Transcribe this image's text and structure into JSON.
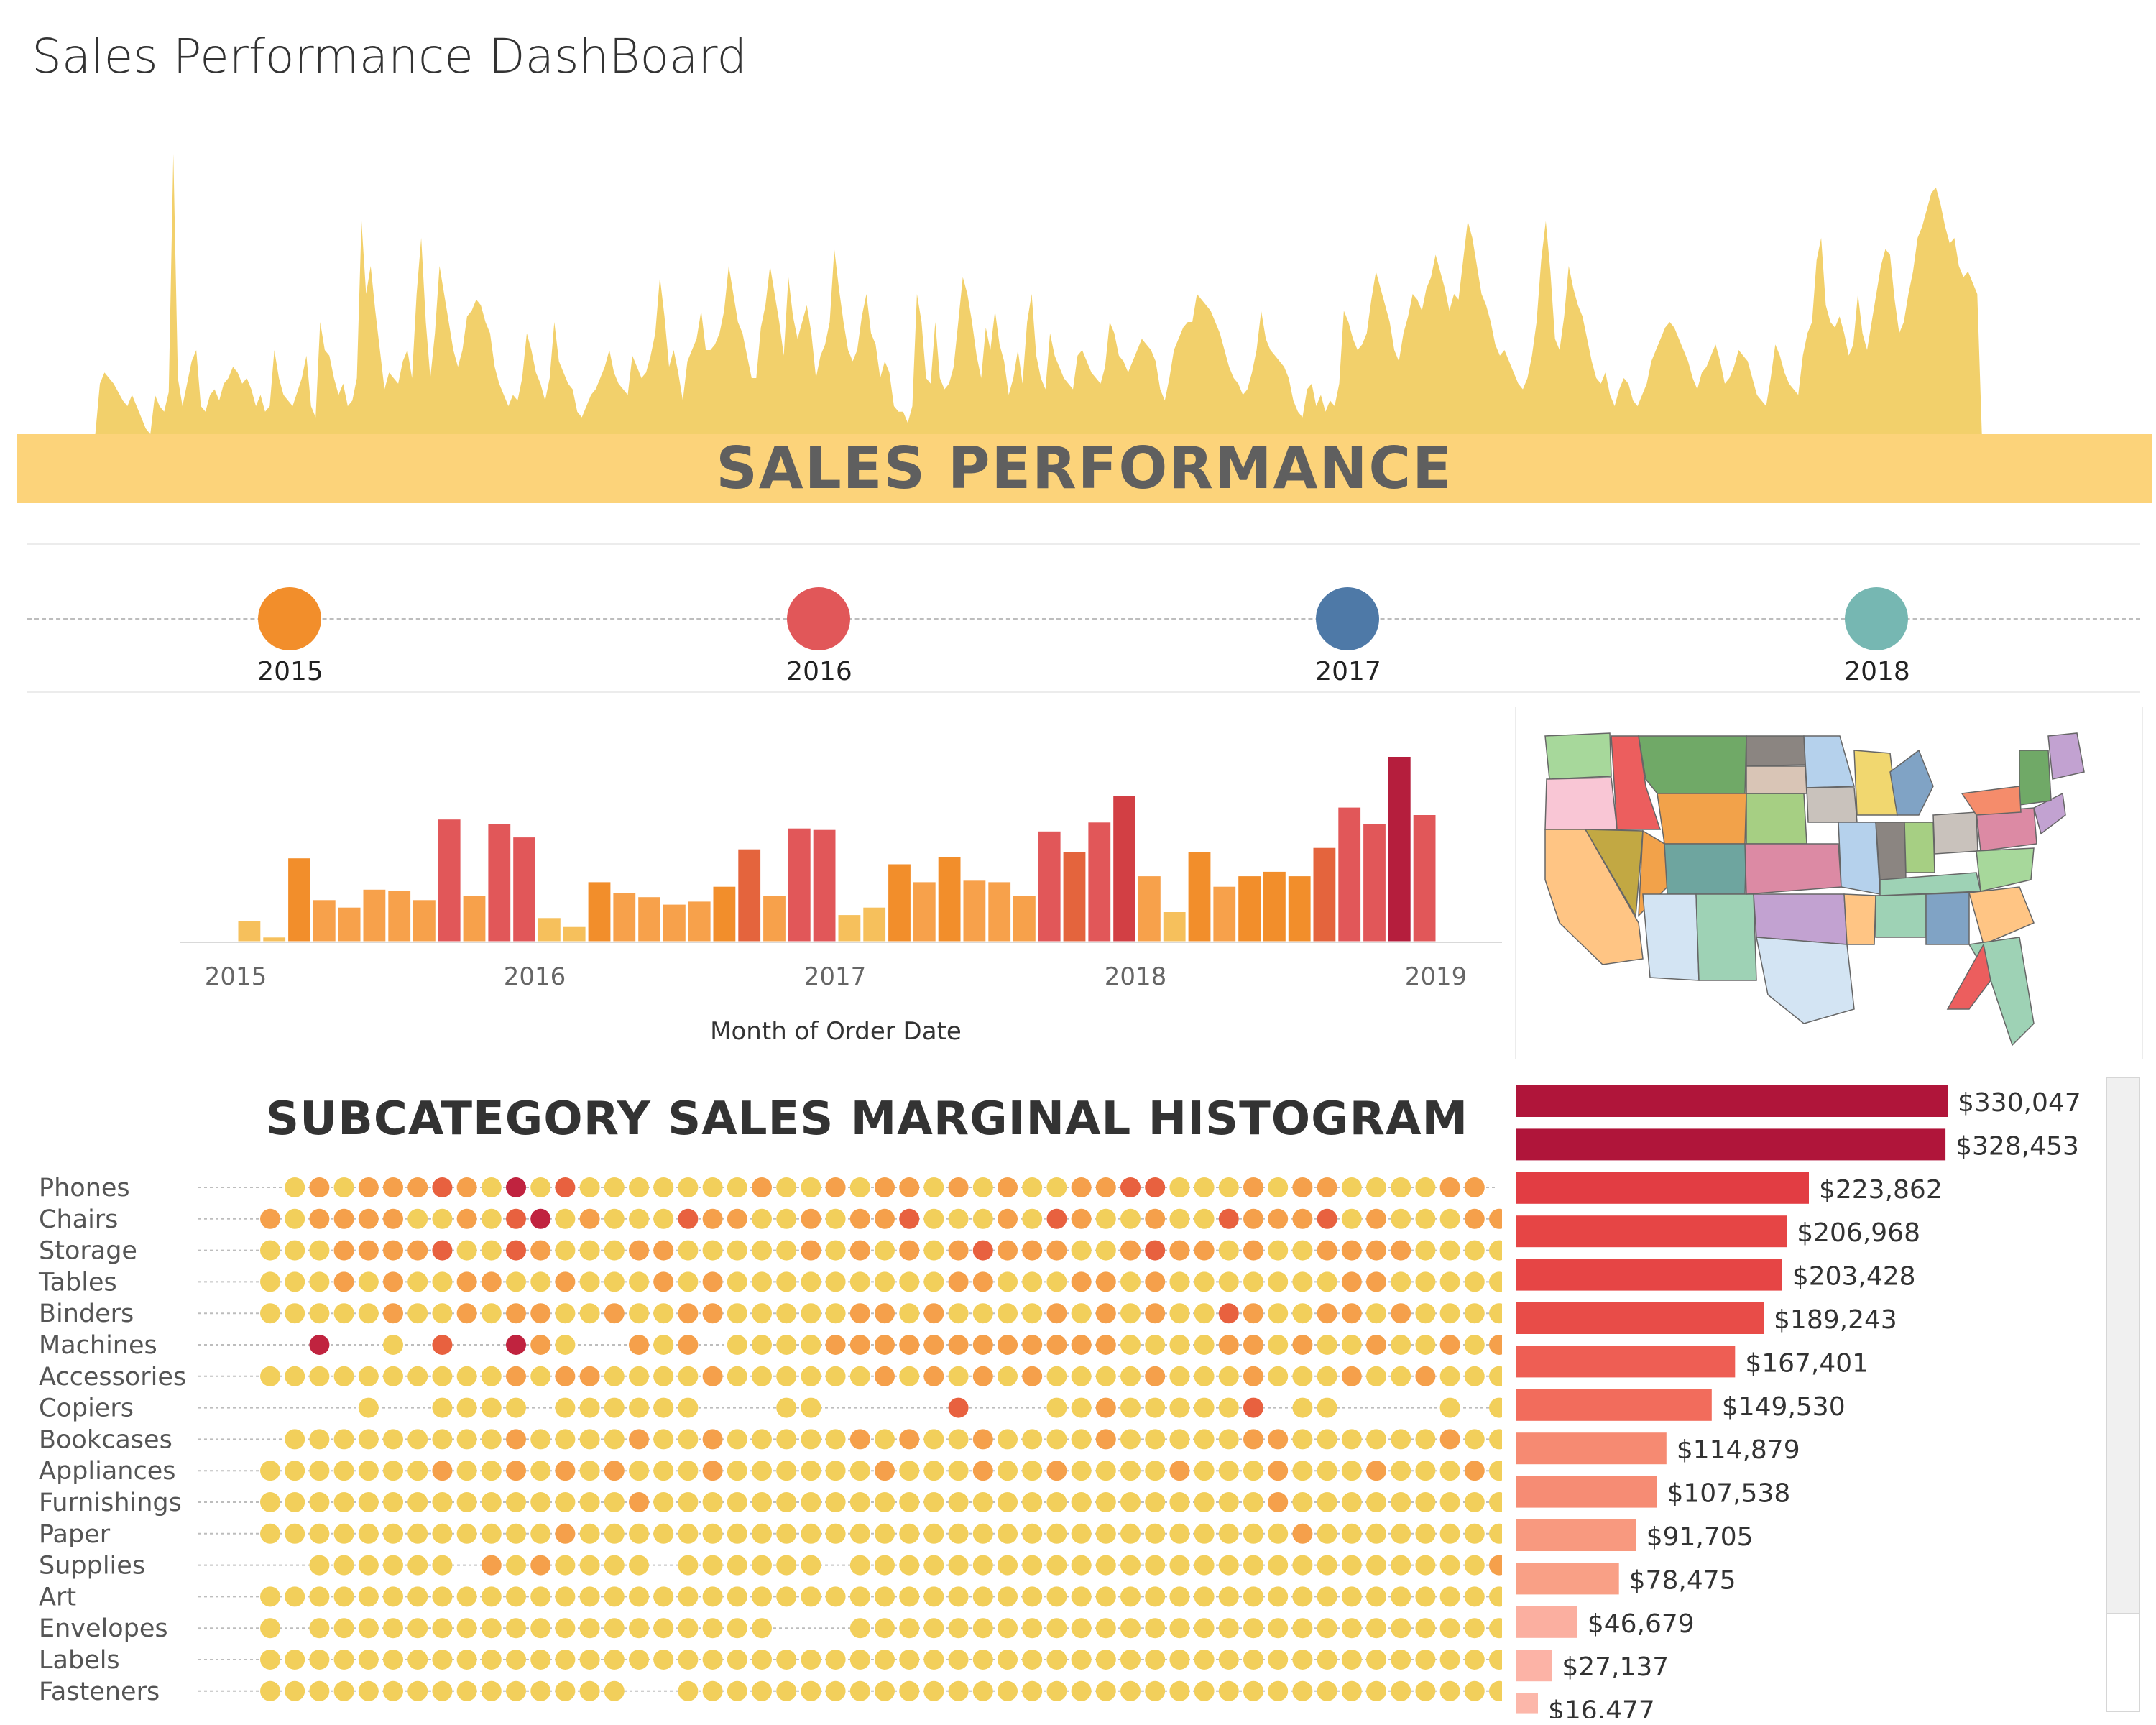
{
  "page": {
    "title": "Sales Performance DashBoard"
  },
  "banner": {
    "text": "SALES PERFORMANCE",
    "fill_color": "#f2d06b",
    "band_color": "#fcd37a"
  },
  "sales_trend": {
    "type": "area",
    "values": [
      0,
      0,
      0,
      0,
      0,
      0,
      0,
      0,
      0,
      0,
      0,
      0,
      0,
      0,
      0,
      0,
      0,
      0,
      18,
      22,
      20,
      18,
      15,
      12,
      10,
      14,
      10,
      6,
      2,
      0,
      14,
      10,
      8,
      15,
      100,
      20,
      10,
      18,
      26,
      30,
      10,
      8,
      14,
      16,
      12,
      18,
      20,
      24,
      22,
      18,
      20,
      16,
      10,
      14,
      8,
      10,
      30,
      20,
      14,
      12,
      10,
      15,
      20,
      28,
      10,
      6,
      40,
      30,
      28,
      20,
      14,
      18,
      10,
      12,
      20,
      76,
      50,
      60,
      44,
      30,
      16,
      22,
      20,
      18,
      26,
      30,
      20,
      50,
      70,
      40,
      20,
      36,
      60,
      50,
      40,
      30,
      24,
      30,
      42,
      44,
      48,
      46,
      40,
      36,
      24,
      18,
      14,
      10,
      14,
      12,
      20,
      36,
      30,
      22,
      18,
      12,
      20,
      40,
      26,
      22,
      18,
      16,
      8,
      6,
      10,
      14,
      16,
      20,
      24,
      30,
      22,
      18,
      16,
      14,
      28,
      24,
      20,
      22,
      28,
      36,
      56,
      42,
      24,
      30,
      22,
      12,
      26,
      30,
      34,
      44,
      30,
      30,
      32,
      36,
      44,
      60,
      50,
      40,
      36,
      28,
      20,
      20,
      38,
      46,
      60,
      50,
      40,
      28,
      56,
      42,
      34,
      40,
      46,
      36,
      20,
      28,
      32,
      40,
      66,
      52,
      40,
      30,
      26,
      30,
      42,
      50,
      36,
      32,
      20,
      26,
      22,
      10,
      8,
      8,
      4,
      10,
      50,
      40,
      20,
      18,
      40,
      20,
      16,
      18,
      24,
      40,
      56,
      50,
      40,
      28,
      20,
      38,
      30,
      44,
      32,
      26,
      14,
      20,
      30,
      18,
      40,
      50,
      28,
      20,
      16,
      36,
      28,
      24,
      20,
      18,
      16,
      28,
      30,
      26,
      22,
      20,
      18,
      24,
      40,
      36,
      28,
      26,
      22,
      26,
      30,
      34,
      32,
      30,
      26,
      16,
      12,
      20,
      30,
      34,
      38,
      40,
      40,
      50,
      48,
      46,
      44,
      40,
      36,
      30,
      24,
      20,
      18,
      14,
      16,
      22,
      30,
      44,
      34,
      30,
      28,
      26,
      24,
      20,
      12,
      8,
      6,
      16,
      18,
      10,
      14,
      8,
      12,
      10,
      18,
      44,
      40,
      34,
      30,
      32,
      36,
      48,
      58,
      52,
      46,
      40,
      30,
      26,
      36,
      42,
      50,
      48,
      44,
      52,
      56,
      64,
      58,
      52,
      44,
      50,
      48,
      62,
      76,
      70,
      60,
      50,
      46,
      40,
      32,
      28,
      30,
      26,
      22,
      18,
      16,
      20,
      28,
      40,
      62,
      76,
      58,
      34,
      30,
      42,
      60,
      52,
      46,
      42,
      34,
      26,
      20,
      18,
      22,
      14,
      10,
      16,
      20,
      18,
      12,
      10,
      14,
      18,
      26,
      30,
      34,
      38,
      40,
      38,
      34,
      30,
      26,
      20,
      16,
      22,
      24,
      28,
      32,
      26,
      18,
      20,
      24,
      30,
      28,
      26,
      20,
      14,
      12,
      10,
      20,
      32,
      28,
      22,
      18,
      16,
      14,
      28,
      36,
      40,
      62,
      70,
      46,
      40,
      38,
      42,
      36,
      28,
      32,
      50,
      36,
      30,
      40,
      50,
      60,
      66,
      64,
      48,
      36,
      40,
      50,
      58,
      70,
      74,
      80,
      86,
      88,
      82,
      74,
      68,
      70,
      60,
      56,
      58,
      54,
      50,
      0,
      0,
      0,
      0,
      0,
      0,
      0,
      0,
      0,
      0,
      0,
      0,
      0,
      0,
      0,
      0,
      0,
      0,
      0,
      0,
      0,
      0,
      0,
      0,
      0,
      0,
      0,
      0,
      0,
      0,
      0,
      0,
      0,
      0,
      0,
      0,
      0,
      0
    ]
  },
  "year_legend": {
    "items": [
      {
        "label": "2015",
        "color": "#f28e2b"
      },
      {
        "label": "2016",
        "color": "#e15759"
      },
      {
        "label": "2017",
        "color": "#4e79a7"
      },
      {
        "label": "2018",
        "color": "#76b7b2"
      }
    ]
  },
  "chart_data": {
    "type": "bar",
    "x_ticks": [
      "2015",
      "2016",
      "2017",
      "2018",
      "2019"
    ],
    "xlabel": "Month of Order Date",
    "values": [
      14,
      3,
      56,
      28,
      23,
      35,
      34,
      28,
      82,
      31,
      79,
      70,
      16,
      10,
      40,
      33,
      30,
      25,
      27,
      37,
      62,
      31,
      76,
      75,
      18,
      23,
      52,
      40,
      57,
      41,
      40,
      31,
      74,
      60,
      80,
      98,
      44,
      20,
      60,
      37,
      44,
      47,
      44,
      63,
      90,
      79,
      124,
      85
    ],
    "colors": [
      "#f6c05c",
      "#f6c05c",
      "#f28e2b",
      "#f7a14b",
      "#f7a14b",
      "#f7a14b",
      "#f7a14b",
      "#f7a14b",
      "#e15759",
      "#f7a14b",
      "#e15759",
      "#e15759",
      "#f6c05c",
      "#f6c05c",
      "#f28e2b",
      "#f7a14b",
      "#f7a14b",
      "#f7a14b",
      "#f7a14b",
      "#f28e2b",
      "#e4643d",
      "#f7a14b",
      "#e15759",
      "#e15759",
      "#f6c05c",
      "#f6c05c",
      "#f28e2b",
      "#f7a14b",
      "#f28e2b",
      "#f7a14b",
      "#f7a14b",
      "#f7a14b",
      "#e15759",
      "#e4643d",
      "#e15759",
      "#d23f44",
      "#f7a14b",
      "#f6c05c",
      "#f28e2b",
      "#f7a14b",
      "#f28e2b",
      "#f28e2b",
      "#f28e2b",
      "#e4643d",
      "#e15759",
      "#e15759",
      "#b51e3d",
      "#e15759"
    ]
  },
  "state_map": {
    "colors": [
      "#a7d89b",
      "#f9c6d5",
      "#ec5e5e",
      "#70a967",
      "#8b8581",
      "#b5d1ec",
      "#d9c5b6",
      "#f1d76f",
      "#ffc584",
      "#c2a843",
      "#f2a24a",
      "#6ea59f",
      "#a6cf83",
      "#80a3c5",
      "#c9c2bc",
      "#dc8aa4",
      "#c2a2d1",
      "#d3e4f3",
      "#9ed2b5",
      "#f58c6b"
    ]
  },
  "subcategory_histogram": {
    "title": "SUBCATEGORY SALES MARGINAL HISTOGRAM",
    "rows": [
      {
        "label": "Phones",
        "dots": "0121222321413111111121121221212112233111212211112202212333111221221"
      },
      {
        "label": "Chairs",
        "dots": "2122221121341211132211212231112132112113222312111221133312111121112"
      },
      {
        "label": "Storage",
        "dots": "1112222311321112211111212121232221123221211222211112113221223112111"
      },
      {
        "label": "Tables",
        "dots": "1112121122112111212111111111221112212111111122111112211212211112211"
      },
      {
        "label": "Binders",
        "dots": "1111121121221121122111112212111121212113211221211111122212112222111"
      },
      {
        "label": "Machines",
        "dots": "0040010300421002120111122222222222211112212112112122111112222221112"
      },
      {
        "label": "Accessories",
        "dots": "1111111111212211112111111212121211112111211121121111112111111111122"
      },
      {
        "label": "Copiers",
        "dots": "0000100111101111110001100000300011211111301100001010101111211121122"
      },
      {
        "label": "Bookcases",
        "dots": "0111111111211112112111112121121111211111221111112111111112122111111"
      },
      {
        "label": "Appliances",
        "dots": "1111111211212121112111111211121121111211121112111211111111112111211"
      },
      {
        "label": "Furnishings",
        "dots": "1111111111111112111111111111111111111111121111111111111121121111111"
      },
      {
        "label": "Paper",
        "dots": "1111111111112111111111111111111111111111112111111111111111111111111"
      },
      {
        "label": "Supplies",
        "dots": "0011111102121111011111101111111111111111111111111121111111111111111"
      },
      {
        "label": "Art",
        "dots": "1111111111111111111111111111111111111111111111111111111111111111111"
      },
      {
        "label": "Envelopes",
        "dots": "1011111111111111111110001111111111111111111111111111111111111111111"
      },
      {
        "label": "Labels",
        "dots": "1111111111111111111111111111111111111111111111111111111111111111111"
      },
      {
        "label": "Fasteners",
        "dots": "1111111111111110011111111111111111111111111111111111111111111111111"
      }
    ],
    "palette": [
      "transparent",
      "#f2cf5b",
      "#f5a04b",
      "#e8613f",
      "#c0233f"
    ]
  },
  "subcategory_sales": {
    "values": [
      330047,
      328453,
      223862,
      206968,
      203428,
      189243,
      167401,
      149530,
      114879,
      107538,
      91705,
      78475,
      46679,
      27137,
      16477
    ],
    "labels": [
      "$330,047",
      "$328,453",
      "$223,862",
      "$206,968",
      "$203,428",
      "$189,243",
      "$167,401",
      "$149,530",
      "$114,879",
      "$107,538",
      "$91,705",
      "$78,475",
      "$46,679",
      "$27,137",
      "$16,477"
    ],
    "colors": [
      "#b0153a",
      "#b0153a",
      "#e23d43",
      "#e64545",
      "#e64545",
      "#e84c48",
      "#ee5e54",
      "#f26c5c",
      "#f68a72",
      "#f68c74",
      "#f8997f",
      "#f9a086",
      "#fbafa0",
      "#fcb3a6",
      "#fcb7aa"
    ]
  }
}
